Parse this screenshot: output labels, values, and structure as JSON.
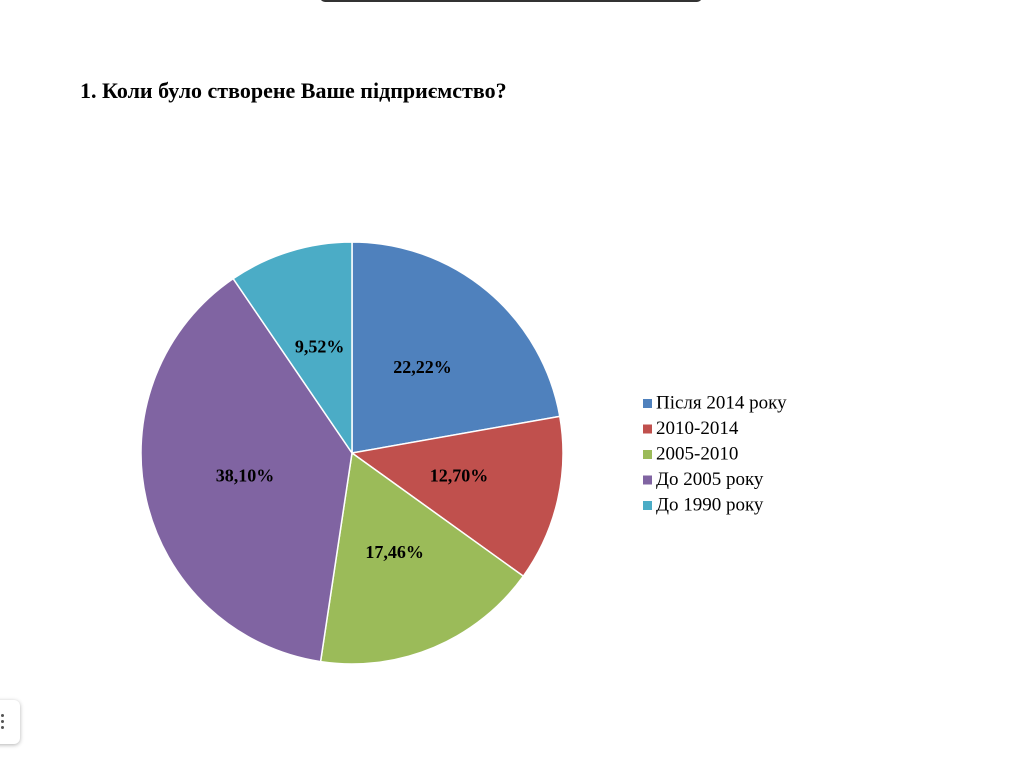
{
  "chart_data": {
    "type": "pie",
    "title": "1. Коли було створене Ваше підприємство?",
    "categories": [
      "Після 2014 року",
      "2010-2014",
      "2005-2010",
      "До 2005 року",
      "До 1990 року"
    ],
    "values": [
      22.22,
      12.7,
      17.46,
      38.1,
      9.52
    ],
    "value_labels": [
      "22,22%",
      "12,70%",
      "17,46%",
      "38,10%",
      "9,52%"
    ],
    "colors": [
      "#4f81bd",
      "#c0504d",
      "#9bbb59",
      "#8064a2",
      "#4bacc6"
    ],
    "legend": "right"
  }
}
